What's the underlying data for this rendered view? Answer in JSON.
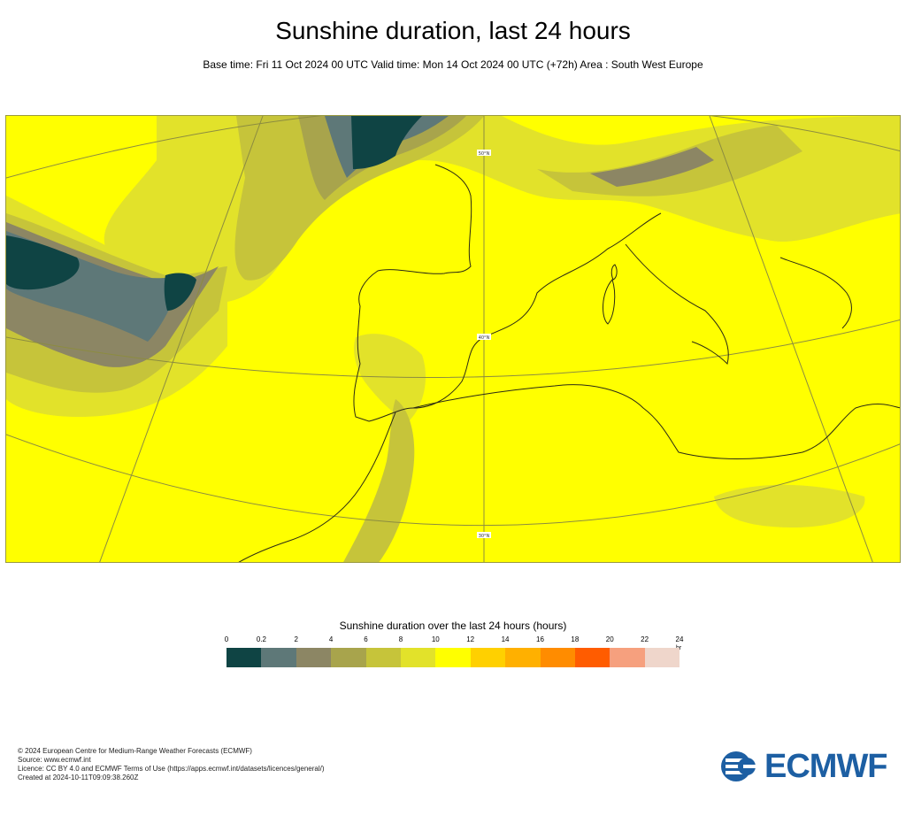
{
  "title": "Sunshine duration, last 24 hours",
  "subtitle": "Base time: Fri 11 Oct 2024 00 UTC Valid time: Mon 14 Oct 2024 00 UTC (+72h) Area : South West Europe",
  "map": {
    "lat_labels": [
      "50°N",
      "40°N",
      "30°N"
    ]
  },
  "legend": {
    "title": "Sunshine duration over the last 24 hours (hours)",
    "unit": "hr",
    "ticks": [
      "0",
      "0.2",
      "2",
      "4",
      "6",
      "8",
      "10",
      "12",
      "14",
      "16",
      "18",
      "20",
      "22",
      "24"
    ],
    "colors": [
      "#0f4444",
      "#5e7878",
      "#8c8664",
      "#a8a44c",
      "#c6c43a",
      "#e2e22a",
      "#ffff00",
      "#ffd000",
      "#ffb000",
      "#ff8c00",
      "#ff5c00",
      "#f6a07e",
      "#efd6cb"
    ]
  },
  "footer": {
    "line1": "© 2024 European Centre for Medium-Range Weather Forecasts (ECMWF)",
    "line2": "Source: www.ecmwf.int",
    "line3": "Licence: CC BY 4.0 and ECMWF Terms of Use (https://apps.ecmwf.int/datasets/licences/general/)",
    "line4": "Created at 2024-10-11T09:09:38.260Z"
  },
  "logo": {
    "text": "ECMWF",
    "color": "#1d5fa3"
  }
}
